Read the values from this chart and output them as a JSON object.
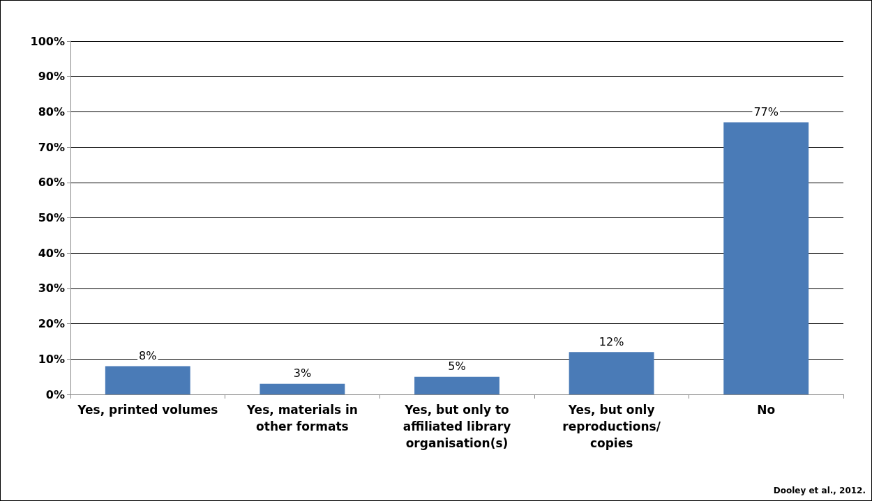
{
  "chart_data": {
    "type": "bar",
    "categories": [
      "Yes, printed volumes",
      "Yes, materials in\nother formats",
      "Yes, but only to\naffiliated library\norganisation(s)",
      "Yes, but only\nreproductions/\ncopies",
      "No"
    ],
    "values": [
      8,
      3,
      5,
      12,
      77
    ],
    "color": "#4a7bb7",
    "value_labels": [
      "8%",
      "3%",
      "5%",
      "12%",
      "77%"
    ],
    "ylim": [
      0,
      100
    ],
    "yticks": [
      {
        "value": 0,
        "label": "0%"
      },
      {
        "value": 10,
        "label": "10%"
      },
      {
        "value": 20,
        "label": "20%"
      },
      {
        "value": 30,
        "label": "30%"
      },
      {
        "value": 40,
        "label": "40%"
      },
      {
        "value": 50,
        "label": "50%"
      },
      {
        "value": 60,
        "label": "60%"
      },
      {
        "value": 70,
        "label": "70%"
      },
      {
        "value": 80,
        "label": "80%"
      },
      {
        "value": 90,
        "label": "90%"
      },
      {
        "value": 100,
        "label": "100%"
      }
    ],
    "grid": "y",
    "annotations": [
      "Dooley et al., 2012."
    ]
  }
}
